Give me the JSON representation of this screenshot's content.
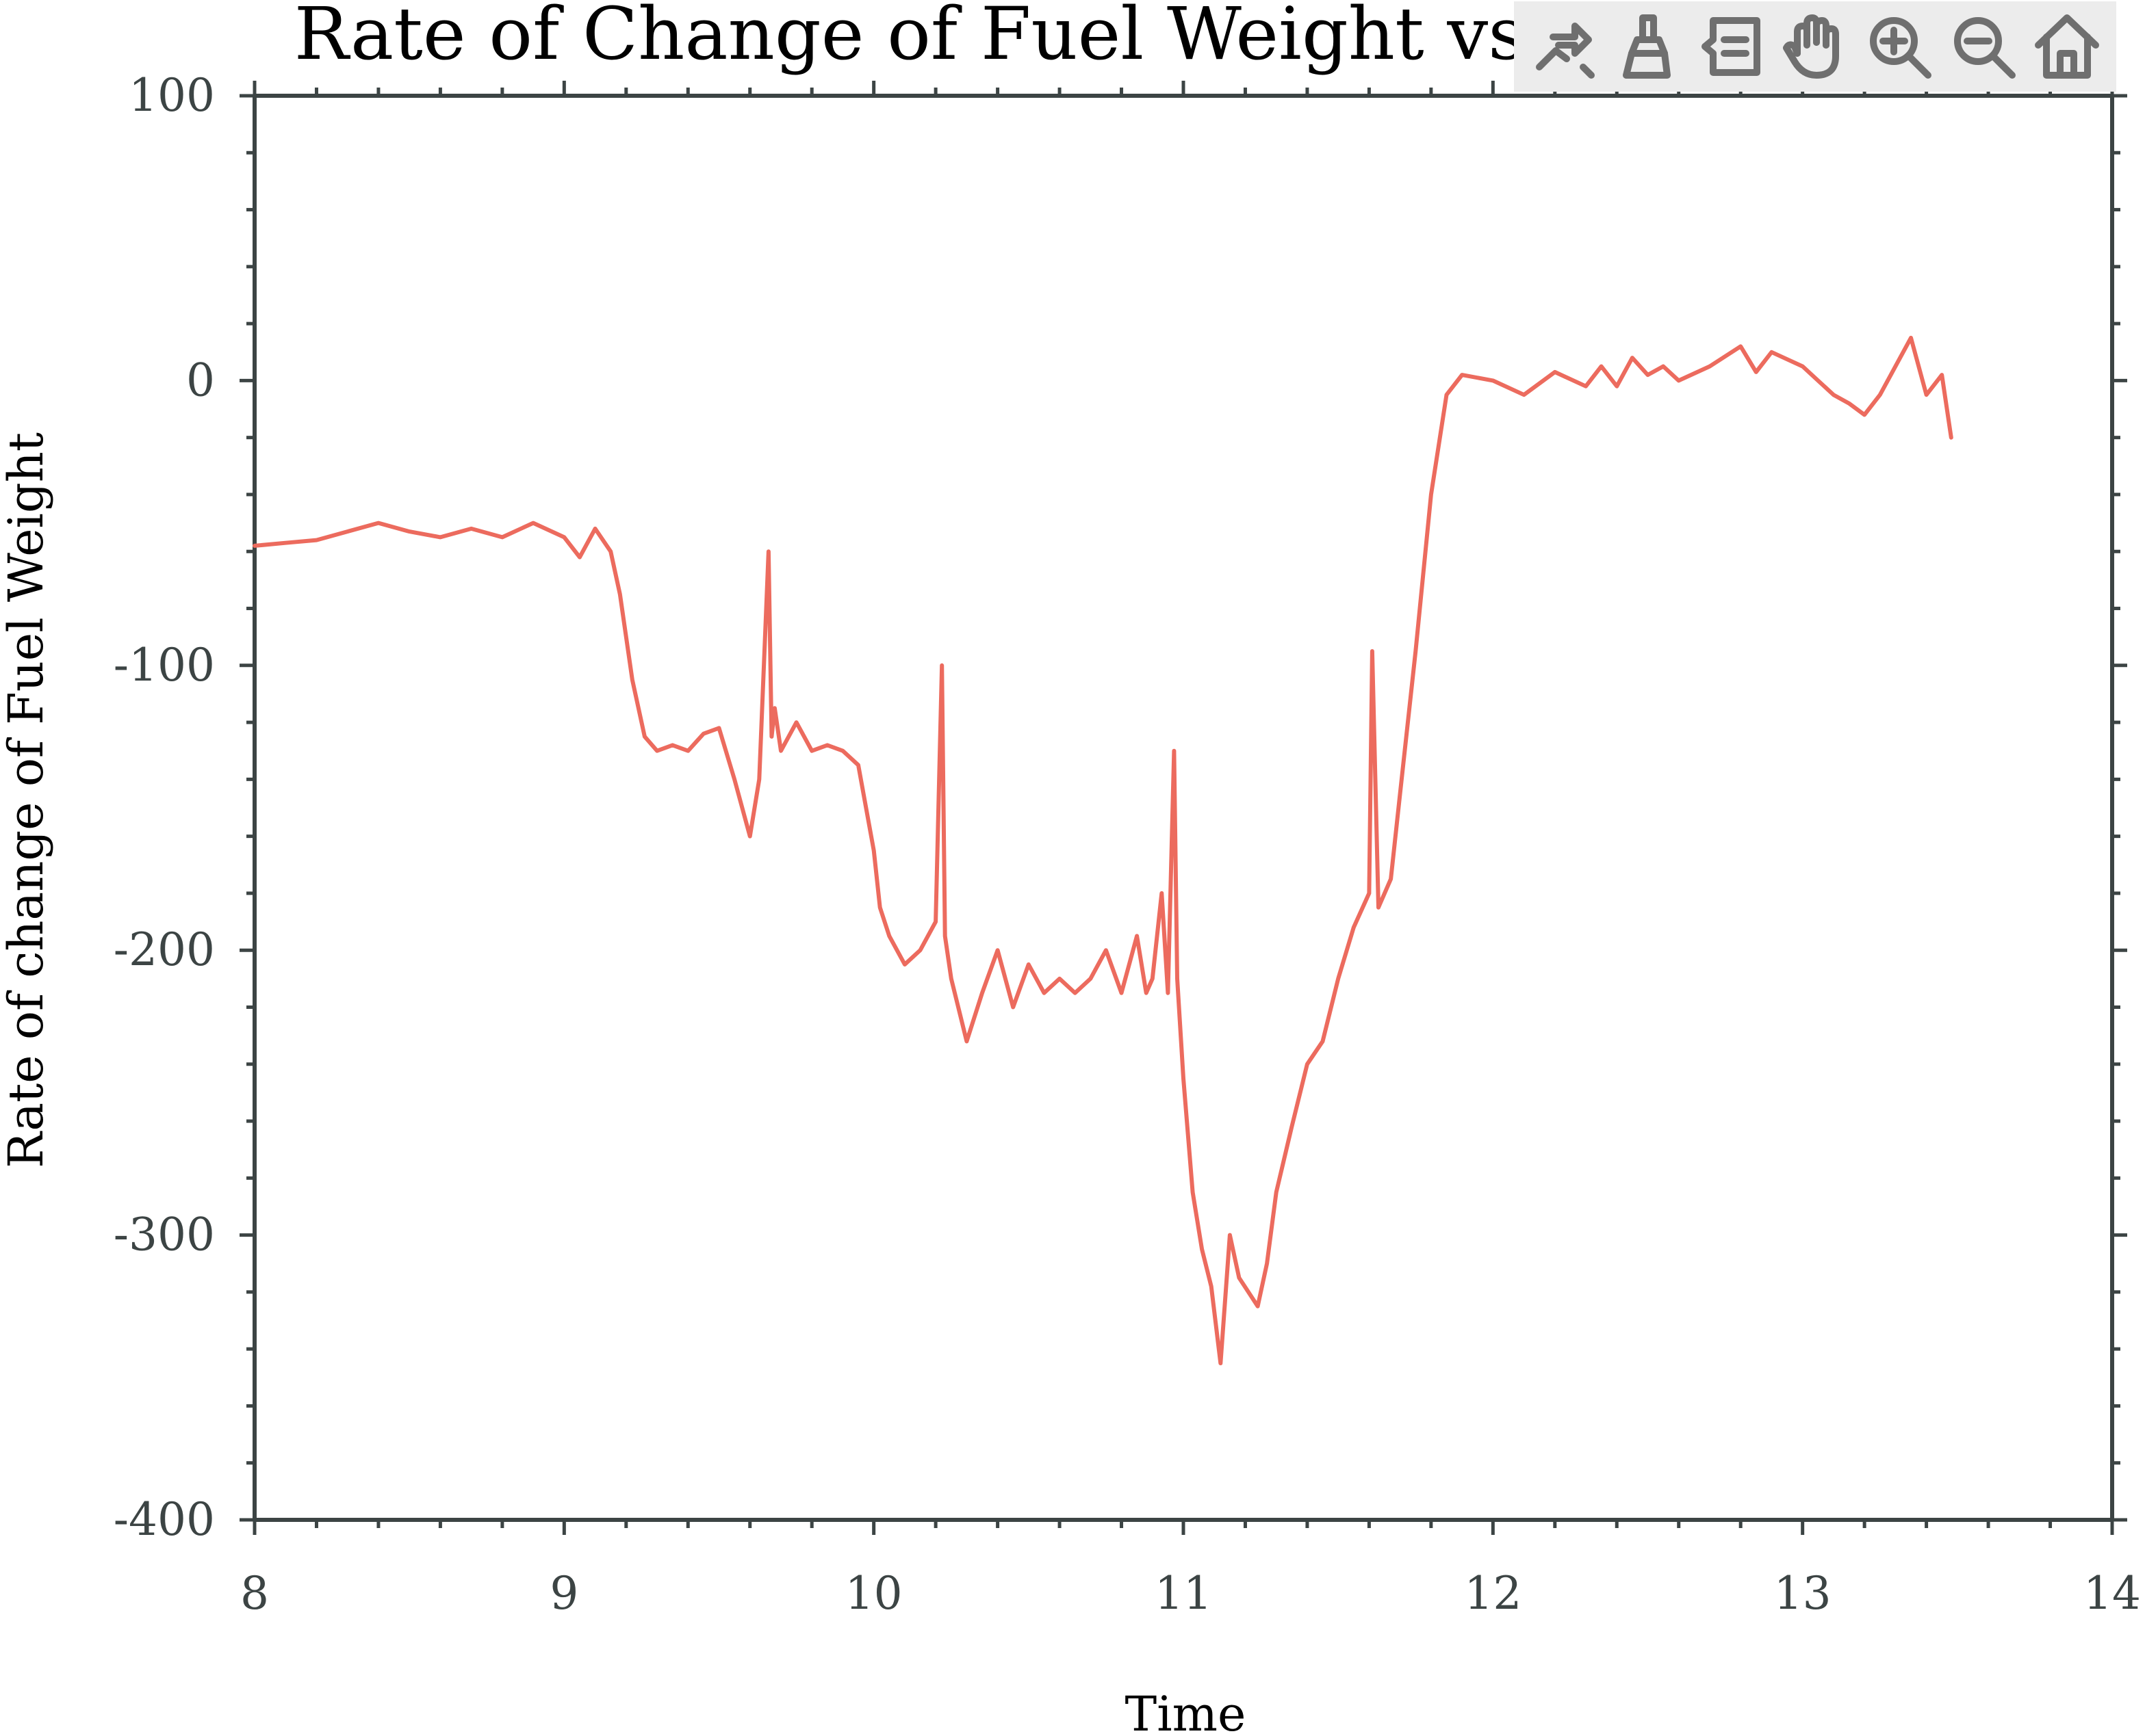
{
  "chart_data": {
    "type": "line",
    "title": "Rate of Change of Fuel Weight vs Time",
    "xlabel": "Time",
    "ylabel": "Rate of change of Fuel Weight",
    "xlim": [
      8,
      14
    ],
    "ylim": [
      -400,
      100
    ],
    "xticks": [
      "8",
      "9",
      "10",
      "11",
      "12",
      "13",
      "14"
    ],
    "yticks": [
      "100",
      "0",
      "-100",
      "-200",
      "-300",
      "-400"
    ],
    "grid": false,
    "series": [
      {
        "color": "#ec6b5e",
        "x": [
          8.0,
          8.1,
          8.2,
          8.3,
          8.4,
          8.5,
          8.6,
          8.7,
          8.8,
          8.9,
          9.0,
          9.05,
          9.1,
          9.15,
          9.18,
          9.22,
          9.26,
          9.3,
          9.35,
          9.4,
          9.45,
          9.5,
          9.55,
          9.6,
          9.63,
          9.66,
          9.67,
          9.68,
          9.7,
          9.75,
          9.8,
          9.85,
          9.9,
          9.95,
          10.0,
          10.02,
          10.05,
          10.1,
          10.15,
          10.2,
          10.22,
          10.23,
          10.25,
          10.3,
          10.35,
          10.4,
          10.45,
          10.5,
          10.55,
          10.6,
          10.65,
          10.7,
          10.75,
          10.8,
          10.85,
          10.88,
          10.9,
          10.93,
          10.95,
          10.97,
          10.98,
          11.0,
          11.03,
          11.06,
          11.09,
          11.12,
          11.15,
          11.18,
          11.21,
          11.24,
          11.27,
          11.3,
          11.35,
          11.4,
          11.45,
          11.5,
          11.55,
          11.6,
          11.61,
          11.63,
          11.67,
          11.7,
          11.75,
          11.8,
          11.85,
          11.9,
          12.0,
          12.1,
          12.2,
          12.3,
          12.35,
          12.4,
          12.45,
          12.5,
          12.55,
          12.6,
          12.7,
          12.8,
          12.85,
          12.9,
          13.0,
          13.05,
          13.1,
          13.15,
          13.2,
          13.25,
          13.3,
          13.35,
          13.4,
          13.45,
          13.48
        ],
        "y": [
          -58,
          -57,
          -56,
          -53,
          -50,
          -53,
          -55,
          -52,
          -55,
          -50,
          -55,
          -62,
          -52,
          -60,
          -75,
          -105,
          -125,
          -130,
          -128,
          -130,
          -124,
          -122,
          -140,
          -160,
          -140,
          -60,
          -125,
          -115,
          -130,
          -120,
          -130,
          -128,
          -130,
          -135,
          -165,
          -185,
          -195,
          -205,
          -200,
          -190,
          -100,
          -195,
          -210,
          -232,
          -215,
          -200,
          -220,
          -205,
          -215,
          -210,
          -215,
          -210,
          -200,
          -215,
          -195,
          -215,
          -210,
          -180,
          -215,
          -130,
          -210,
          -245,
          -285,
          -305,
          -318,
          -345,
          -300,
          -315,
          -320,
          -325,
          -310,
          -285,
          -262,
          -240,
          -232,
          -210,
          -192,
          -180,
          -95,
          -185,
          -175,
          -145,
          -95,
          -40,
          -5,
          2,
          0,
          -5,
          3,
          -2,
          5,
          -2,
          8,
          2,
          5,
          0,
          5,
          12,
          3,
          10,
          5,
          0,
          -5,
          -8,
          -12,
          -5,
          5,
          15,
          -5,
          2,
          -20
        ]
      }
    ]
  },
  "toolbar": {
    "buttons": [
      "export-icon",
      "brush-icon",
      "data-tips-icon",
      "pan-icon",
      "zoom-in-icon",
      "zoom-out-icon",
      "home-icon"
    ]
  }
}
